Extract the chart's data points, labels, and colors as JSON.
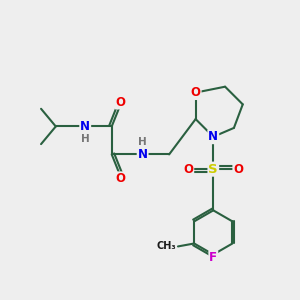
{
  "background_color": "#eeeeee",
  "atom_colors": {
    "C": "#1a1a1a",
    "N": "#0000ee",
    "O": "#ee0000",
    "S": "#cccc00",
    "F": "#cc00cc",
    "H": "#777777"
  },
  "bond_color": "#2a6040",
  "bond_width": 1.5,
  "figsize": [
    3.0,
    3.0
  ],
  "dpi": 100
}
